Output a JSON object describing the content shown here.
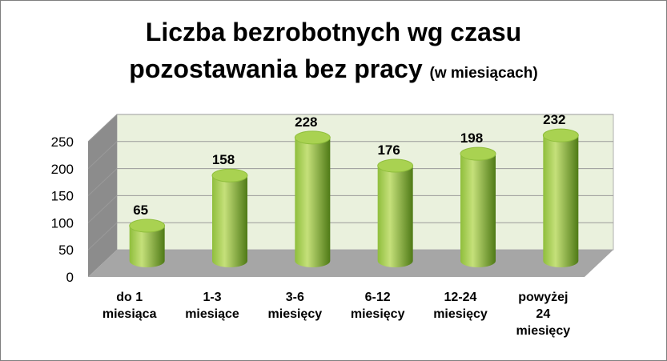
{
  "chart_data": {
    "type": "bar",
    "title_line1": "Liczba bezrobotnych wg  czasu",
    "title_line2": "pozostawania bez pracy",
    "title_suffix": "(w miesiącach)",
    "categories": [
      [
        "do 1",
        "miesiąca"
      ],
      [
        "1-3",
        "miesiące"
      ],
      [
        "3-6",
        "miesięcy"
      ],
      [
        "6-12",
        "miesięcy"
      ],
      [
        "12-24",
        "miesięcy"
      ],
      [
        "powyżej",
        "24",
        "miesięcy"
      ]
    ],
    "values": [
      65,
      158,
      228,
      176,
      198,
      232
    ],
    "ylim": [
      0,
      250
    ],
    "yticks": [
      0,
      50,
      100,
      150,
      200,
      250
    ],
    "grid": true,
    "legend": "none",
    "colors": {
      "bar_light": "#c5e07a",
      "bar_mid": "#8fbe3c",
      "bar_dark": "#4f7a16",
      "bar_top": "#a9d251",
      "wall": "#eaf1dd",
      "floor": "#a6a6a6",
      "side_wall": "#8c8c8c"
    }
  }
}
